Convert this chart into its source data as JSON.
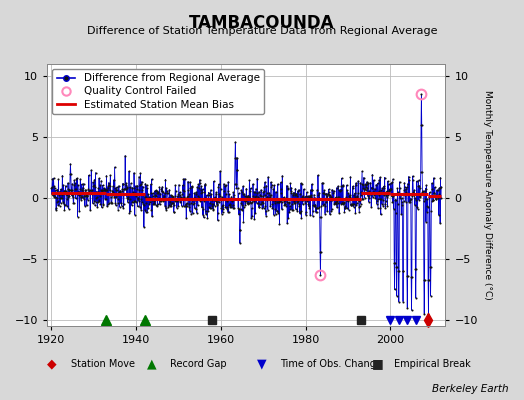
{
  "title": "TAMBACOUNDA",
  "subtitle": "Difference of Station Temperature Data from Regional Average",
  "ylabel_right": "Monthly Temperature Anomaly Difference (°C)",
  "xlim": [
    1919,
    2013
  ],
  "ylim": [
    -10.5,
    11
  ],
  "yticks": [
    -10,
    -5,
    0,
    5,
    10
  ],
  "xticks": [
    1920,
    1940,
    1960,
    1980,
    2000
  ],
  "background_color": "#d8d8d8",
  "plot_bg_color": "#ffffff",
  "grid_color": "#bbbbbb",
  "data_line_color": "#0000cc",
  "data_marker_color": "#111111",
  "bias_line_color": "#dd0000",
  "qc_fail_color": "#ff88bb",
  "station_move_color": "#cc0000",
  "record_gap_color": "#007700",
  "tobs_change_color": "#0000cc",
  "emp_break_color": "#222222",
  "seed": 42,
  "start_year": 1920,
  "end_year": 2012,
  "station_moves": [
    2009
  ],
  "record_gaps": [
    1933,
    1942
  ],
  "empirical_breaks": [
    1958,
    1993
  ],
  "tobs_changes": [
    2000,
    2002,
    2004,
    2006
  ],
  "qc_fails_approx": [
    1983.5,
    2007.3
  ],
  "bias_segments": [
    {
      "start": 1920,
      "end": 1933,
      "value": 0.45
    },
    {
      "start": 1933,
      "end": 1942,
      "value": 0.3
    },
    {
      "start": 1942,
      "end": 1958,
      "value": -0.05
    },
    {
      "start": 1958,
      "end": 1993,
      "value": -0.1
    },
    {
      "start": 1993,
      "end": 2000,
      "value": 0.45
    },
    {
      "start": 2000,
      "end": 2009,
      "value": 0.35
    },
    {
      "start": 2009,
      "end": 2012,
      "value": 0.2
    }
  ],
  "berkeley_earth_text": "Berkeley Earth",
  "title_fontsize": 12,
  "subtitle_fontsize": 8,
  "tick_fontsize": 8,
  "legend_fontsize": 7.5
}
